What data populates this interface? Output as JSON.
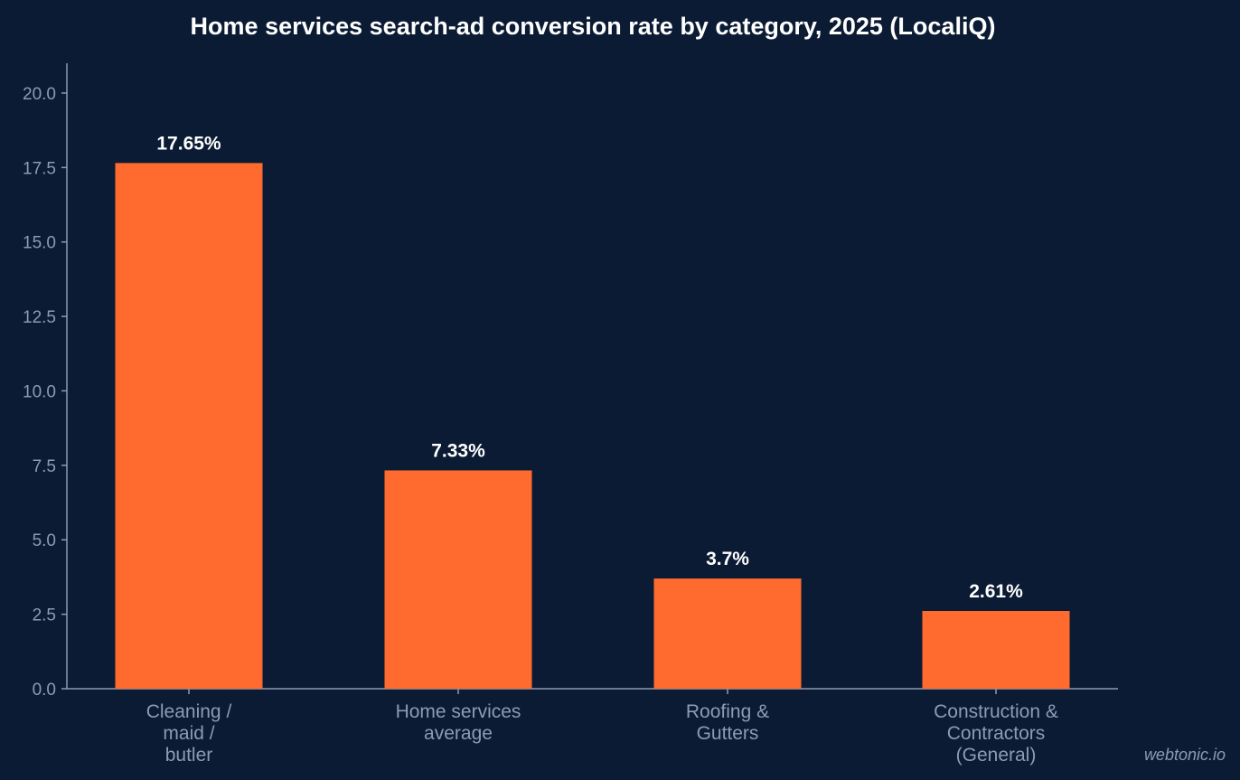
{
  "chart_data": {
    "type": "bar",
    "title": "Home services search-ad conversion rate by category, 2025 (LocaliQ)",
    "xlabel": "",
    "ylabel": "",
    "categories": [
      [
        "Cleaning /",
        "maid /",
        "butler"
      ],
      [
        "Home services",
        "average"
      ],
      [
        "Roofing &",
        "Gutters"
      ],
      [
        "Construction &",
        "Contractors",
        "(General)"
      ]
    ],
    "values": [
      17.65,
      7.33,
      3.7,
      2.61
    ],
    "data_labels": [
      "17.65%",
      "7.33%",
      "3.7%",
      "2.61%"
    ],
    "yticks": [
      0.0,
      2.5,
      5.0,
      7.5,
      10.0,
      12.5,
      15.0,
      17.5,
      20.0
    ],
    "ytick_labels": [
      "0.0",
      "2.5",
      "5.0",
      "7.5",
      "10.0",
      "12.5",
      "15.0",
      "17.5",
      "20.0"
    ],
    "ylim": [
      0,
      21
    ],
    "grid": false,
    "legend": "none",
    "colors": {
      "bar": "#ff6b2f",
      "background": "#0b1b33",
      "axis": "#8e9bb2",
      "text": "#ffffff",
      "muted_text": "#8e9bb2"
    }
  },
  "watermark": "webtonic.io"
}
